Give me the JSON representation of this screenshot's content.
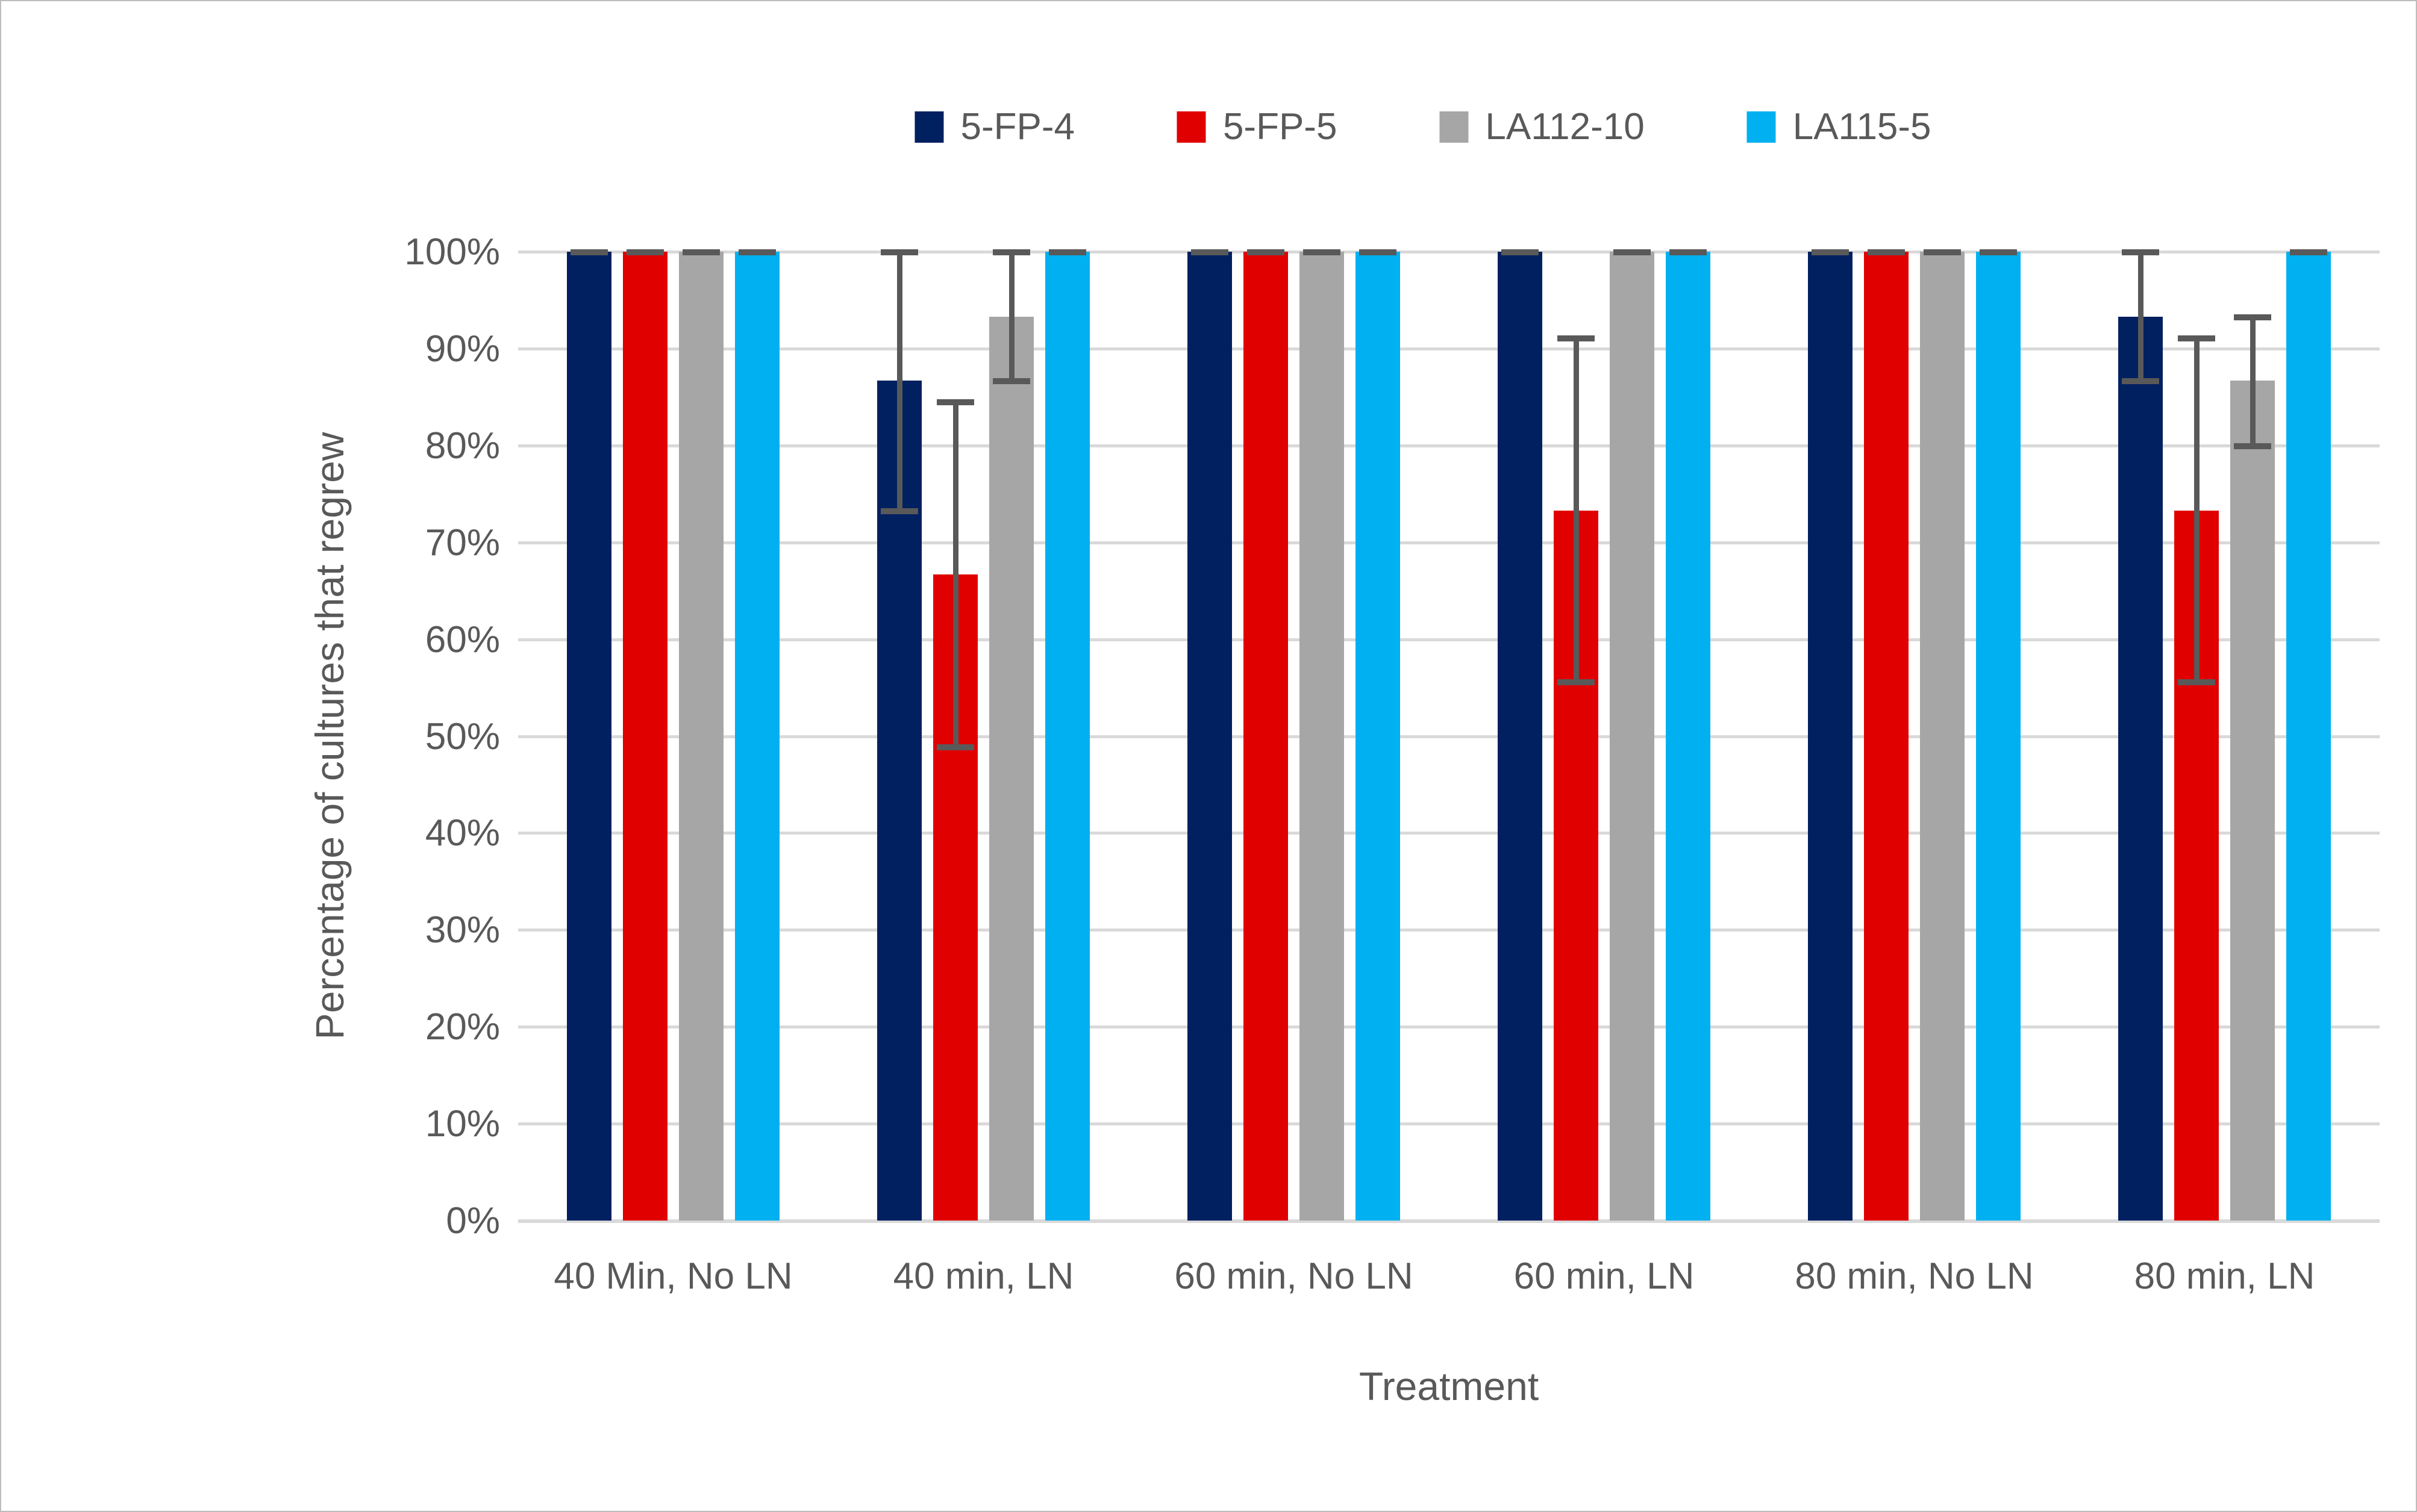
{
  "chart_data": {
    "type": "bar",
    "title": "",
    "xlabel": "Treatment",
    "ylabel": "Percentage of cultures that regrew",
    "ylim": [
      0,
      100
    ],
    "ytick_step": 10,
    "yticks": [
      "0%",
      "10%",
      "20%",
      "30%",
      "40%",
      "50%",
      "60%",
      "70%",
      "80%",
      "90%",
      "100%"
    ],
    "grid": true,
    "legend_position": "top",
    "categories": [
      "40 Min, No LN",
      "40 min, LN",
      "60 min, No LN",
      "60 min, LN",
      "80 min, No LN",
      "80 min, LN"
    ],
    "series": [
      {
        "name": "5-FP-4",
        "color": "#002060",
        "values": [
          100,
          86.7,
          100,
          100,
          100,
          93.3
        ],
        "error_low": [
          100,
          73.3,
          100,
          100,
          100,
          86.7
        ],
        "error_high": [
          100,
          100,
          100,
          100,
          100,
          100
        ]
      },
      {
        "name": "5-FP-5",
        "color": "#e00000",
        "values": [
          100,
          66.7,
          100,
          73.3,
          100,
          73.3
        ],
        "error_low": [
          100,
          48.9,
          100,
          55.6,
          100,
          55.6
        ],
        "error_high": [
          100,
          84.5,
          100,
          91.1,
          100,
          91.1
        ]
      },
      {
        "name": "LA112-10",
        "color": "#a6a6a6",
        "values": [
          100,
          93.3,
          100,
          100,
          100,
          86.7
        ],
        "error_low": [
          100,
          86.7,
          100,
          100,
          100,
          80
        ],
        "error_high": [
          100,
          100,
          100,
          100,
          100,
          93.3
        ]
      },
      {
        "name": "LA115-5",
        "color": "#00b0f0",
        "values": [
          100,
          100,
          100,
          100,
          100,
          100
        ],
        "error_low": [
          100,
          100,
          100,
          100,
          100,
          100
        ],
        "error_high": [
          100,
          100,
          100,
          100,
          100,
          100
        ]
      }
    ],
    "colors": {
      "grid": "#d9d9d9",
      "error_bar": "#595959",
      "text": "#595959",
      "border": "#bdbdbd"
    }
  }
}
